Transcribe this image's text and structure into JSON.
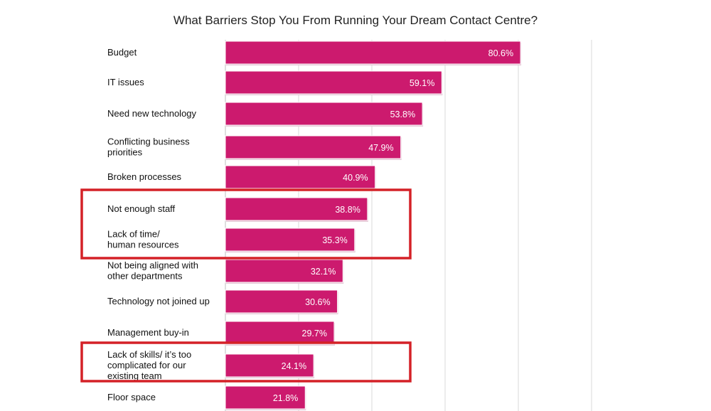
{
  "chart_data": {
    "type": "bar",
    "orientation": "horizontal",
    "title": "What Barriers Stop You From Running Your Dream Contact Centre?",
    "xlabel": "",
    "ylabel": "",
    "xlim": [
      0,
      100
    ],
    "grid": true,
    "categories": [
      "Budget",
      "IT issues",
      "Need new technology",
      "Conflicting business priorities",
      "Broken processes",
      "Not enough staff",
      "Lack of time/ human resources",
      "Not being aligned with other departments",
      "Technology not joined up",
      "Management buy-in",
      "Lack of skills/ it’s too complicated for our existing team",
      "Floor space"
    ],
    "values": [
      80.6,
      59.1,
      53.8,
      47.9,
      40.9,
      38.8,
      35.3,
      32.1,
      30.6,
      29.7,
      24.1,
      21.8
    ],
    "value_labels": [
      "80.6%",
      "59.1%",
      "53.8%",
      "47.9%",
      "40.9%",
      "38.8%",
      "35.3%",
      "32.1%",
      "30.6%",
      "29.7%",
      "24.1%",
      "21.8%"
    ],
    "bar_color": "#cc1a6e",
    "highlight_color": "#d42127",
    "highlighted_groups": [
      [
        "Not enough staff",
        "Lack of time/ human resources"
      ],
      [
        "Lack of skills/ it’s too complicated for our existing team"
      ]
    ]
  }
}
